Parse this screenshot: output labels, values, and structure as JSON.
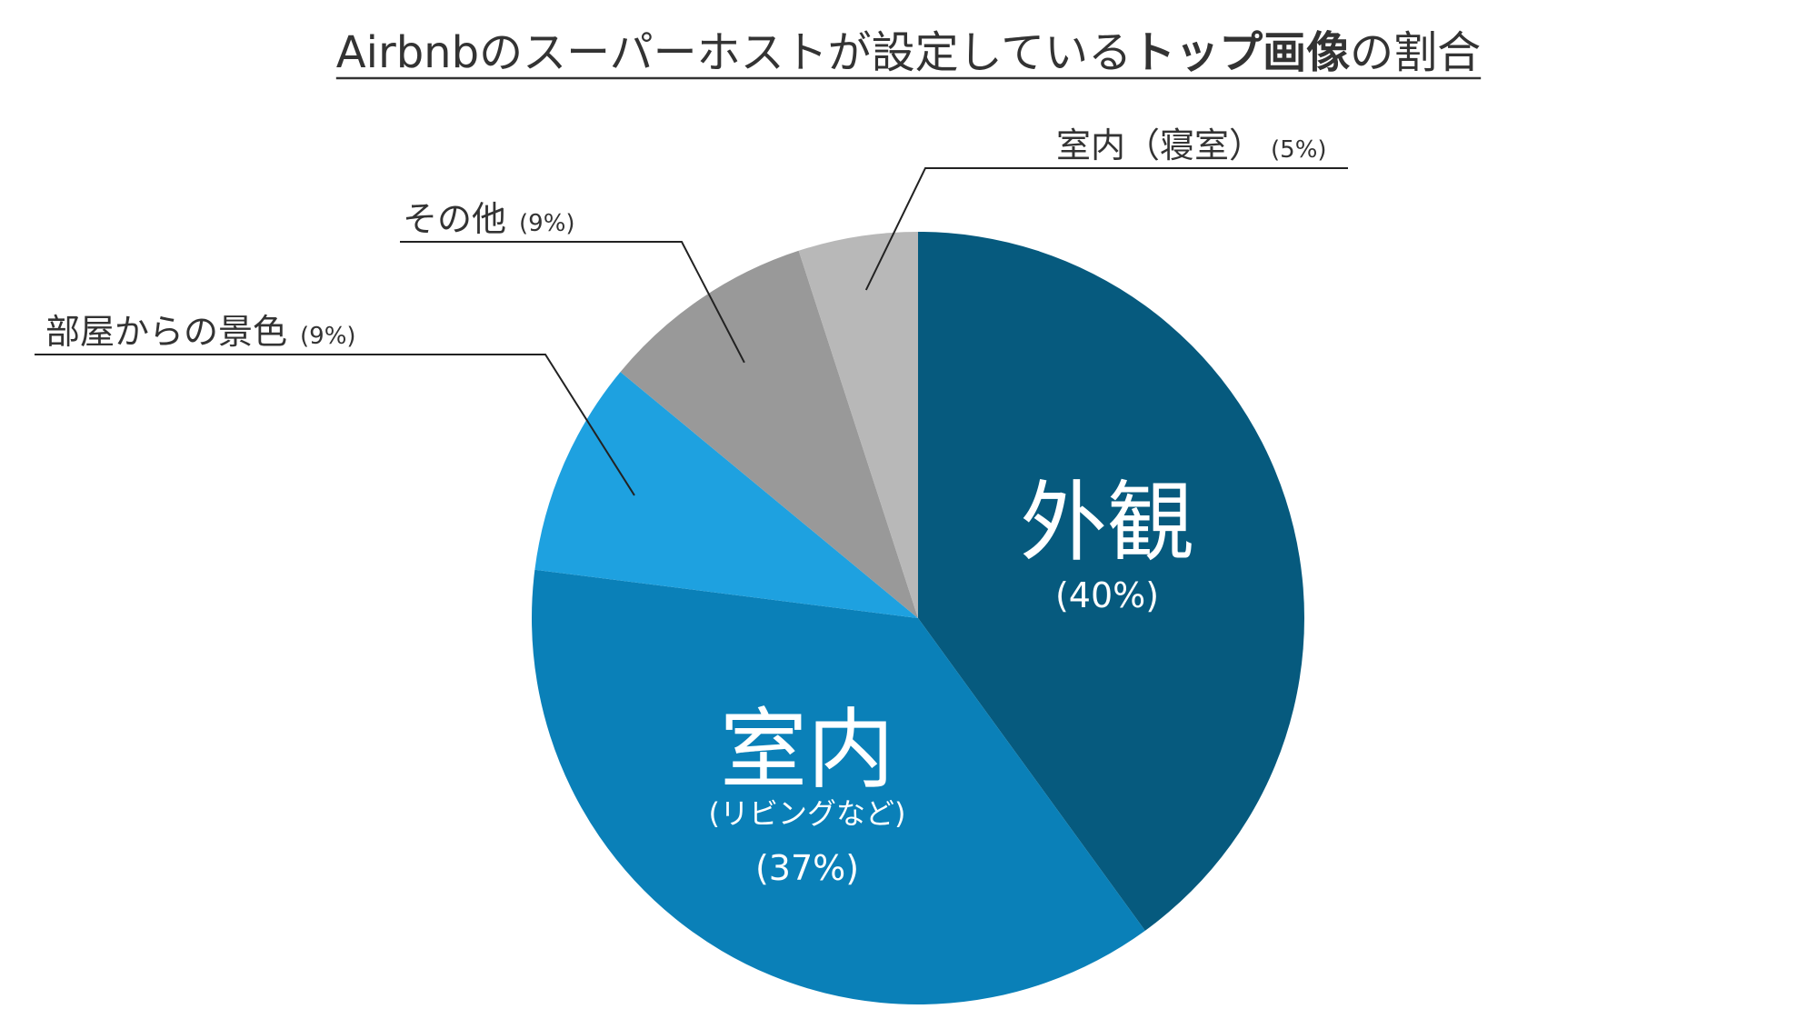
{
  "chart_data": {
    "type": "pie",
    "title_parts": [
      {
        "text": "Airbnbのスーパーホストが設定している",
        "bold": false
      },
      {
        "text": "トップ画像",
        "bold": true
      },
      {
        "text": "の割合",
        "bold": false
      }
    ],
    "slices": [
      {
        "label": "外観",
        "sublabel": "",
        "pct_text": "(40%)",
        "value": 40,
        "color": "#065a7e",
        "label_style": "inside"
      },
      {
        "label": "室内",
        "sublabel": "(リビングなど)",
        "pct_text": "(37%)",
        "value": 37,
        "color": "#0a80b8",
        "label_style": "inside"
      },
      {
        "label": "部屋からの景色",
        "sublabel": "",
        "pct_text": "(9%)",
        "value": 9,
        "color": "#1ea1e0",
        "label_style": "callout"
      },
      {
        "label": "その他",
        "sublabel": "",
        "pct_text": "(9%)",
        "value": 9,
        "color": "#999999",
        "label_style": "callout"
      },
      {
        "label": "室内（寝室）",
        "sublabel": "",
        "pct_text": "(5%)",
        "value": 5,
        "color": "#b8b8b8",
        "label_style": "callout"
      }
    ],
    "start": "12 o'clock",
    "direction": "clockwise"
  }
}
